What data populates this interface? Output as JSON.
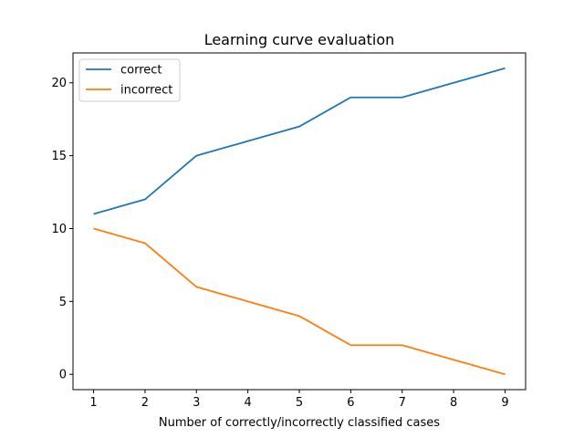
{
  "chart_data": {
    "type": "line",
    "title": "Learning curve evaluation",
    "xlabel": "Number of correctly/incorrectly classified cases",
    "ylabel": "",
    "x": [
      1,
      2,
      3,
      4,
      5,
      6,
      7,
      8,
      9
    ],
    "xlim": [
      0.6,
      9.4
    ],
    "ylim": [
      -1.05,
      22.05
    ],
    "xticks": [
      1,
      2,
      3,
      4,
      5,
      6,
      7,
      8,
      9
    ],
    "yticks": [
      0,
      5,
      10,
      15,
      20
    ],
    "grid": false,
    "legend_position": "top-left",
    "series": [
      {
        "name": "correct",
        "color": "#1f77b4",
        "values": [
          11,
          12,
          15,
          16,
          17,
          19,
          19,
          20,
          21
        ]
      },
      {
        "name": "incorrect",
        "color": "#ff7f0e",
        "values": [
          10,
          9,
          6,
          5,
          4,
          2,
          2,
          1,
          0
        ]
      }
    ]
  }
}
